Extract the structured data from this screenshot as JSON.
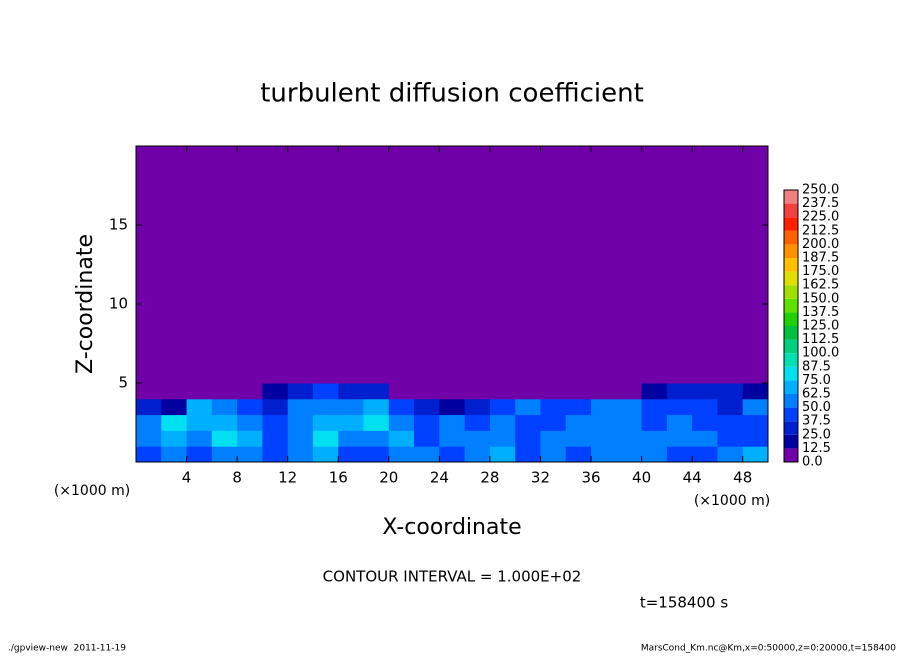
{
  "chart_data": {
    "type": "heatmap",
    "title": "turbulent diffusion coefficient",
    "x_label": "X-coordinate",
    "y_label": "Z-coordinate",
    "x_unit": "(×1000 m)",
    "y_unit": "(×1000 m)",
    "contour_note": "CONTOUR INTERVAL = 1.000E+02",
    "time_label": "t=158400 s",
    "footer_left": "./gpview-new  2011-11-19",
    "footer_right": "MarsCond_Km.nc@Km,x=0:50000,z=0:20000,t=158400",
    "xlim": [
      0,
      50
    ],
    "ylim": [
      0,
      20
    ],
    "xticks": [
      4,
      8,
      12,
      16,
      20,
      24,
      28,
      32,
      36,
      40,
      44,
      48
    ],
    "yticks": [
      5,
      10,
      15
    ],
    "x": [
      1,
      3,
      5,
      7,
      9,
      11,
      13,
      15,
      17,
      19,
      21,
      23,
      25,
      27,
      29,
      31,
      33,
      35,
      37,
      39,
      41,
      43,
      45,
      47,
      49
    ],
    "z": [
      0.5,
      1.5,
      2.5,
      3.5,
      4.5,
      5.5
    ],
    "values": [
      [
        40,
        55,
        45,
        60,
        50,
        45,
        55,
        70,
        45,
        40,
        60,
        50,
        45,
        55,
        65,
        40,
        50,
        45,
        60,
        50,
        55,
        45,
        40,
        50,
        65
      ],
      [
        55,
        70,
        60,
        75,
        65,
        45,
        50,
        75,
        60,
        55,
        70,
        45,
        50,
        60,
        55,
        45,
        50,
        60,
        55,
        60,
        50,
        55,
        50,
        45,
        45
      ],
      [
        60,
        75,
        70,
        65,
        50,
        40,
        60,
        70,
        65,
        75,
        60,
        45,
        50,
        45,
        50,
        40,
        45,
        50,
        60,
        50,
        45,
        50,
        45,
        40,
        45
      ],
      [
        35,
        20,
        70,
        60,
        45,
        30,
        50,
        60,
        55,
        70,
        40,
        35,
        20,
        30,
        45,
        50,
        45,
        40,
        50,
        55,
        40,
        45,
        40,
        35,
        50
      ],
      [
        10,
        0,
        0,
        0,
        0,
        15,
        35,
        40,
        30,
        25,
        0,
        0,
        0,
        0,
        0,
        0,
        0,
        0,
        0,
        0,
        15,
        35,
        30,
        25,
        20
      ],
      [
        0,
        0,
        0,
        0,
        0,
        0,
        0,
        0,
        0,
        0,
        0,
        0,
        0,
        0,
        0,
        0,
        0,
        0,
        0,
        0,
        0,
        10,
        10,
        0,
        0
      ]
    ],
    "levels": [
      {
        "value": 0,
        "label": "0.0"
      },
      12.5,
      {
        "value": 25,
        "label": "25.0"
      },
      37.5,
      {
        "value": 50,
        "label": "50.0"
      },
      62.5,
      {
        "value": 75,
        "label": "75.0"
      },
      87.5,
      {
        "value": 100,
        "label": "100.0"
      },
      112.5,
      {
        "value": 125,
        "label": "125.0"
      },
      137.5,
      {
        "value": 150,
        "label": "150.0"
      },
      162.5,
      {
        "value": 175,
        "label": "175.0"
      },
      187.5,
      {
        "value": 200,
        "label": "200.0"
      },
      212.5,
      {
        "value": 225,
        "label": "225.0"
      },
      237.5,
      {
        "value": 250,
        "label": "250.0"
      }
    ],
    "colors": [
      "#7000a8",
      "#0000a0",
      "#0020d0",
      "#0040ff",
      "#0080ff",
      "#00b0ff",
      "#00e0f0",
      "#00e0b0",
      "#00d080",
      "#00c040",
      "#20d000",
      "#60e000",
      "#a0e000",
      "#e0e000",
      "#ffc000",
      "#ff9000",
      "#ff6000",
      "#ff2000",
      "#f04040",
      "#f08080"
    ]
  }
}
